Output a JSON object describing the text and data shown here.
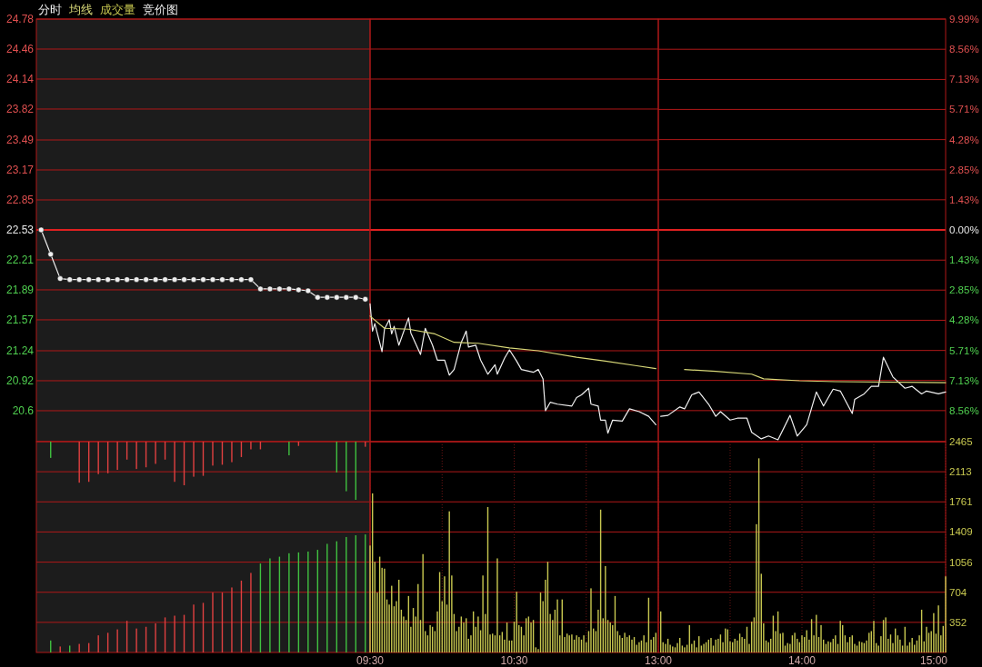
{
  "chart_data": [
    {
      "type": "line",
      "grid": "y",
      "tick_labels": "y",
      "categories": [
        null,
        null,
        null,
        null,
        null,
        null,
        null,
        null,
        null,
        null,
        null,
        null,
        null,
        null,
        null,
        null,
        null,
        null,
        null,
        null,
        null,
        null,
        null,
        null,
        null,
        null,
        null,
        null,
        null,
        null,
        null,
        null,
        null,
        null,
        null
      ],
      "ylim": [
        20.27,
        24.78
      ],
      "yticks": [
        24.78,
        24.46,
        24.14,
        23.82,
        23.49,
        23.17,
        22.85,
        22.53,
        22.21,
        21.89,
        21.57,
        21.24,
        20.92,
        20.6
      ],
      "marker": "circle",
      "ref_lines": [
        {
          "axis": "y",
          "value": 22.53,
          "color": "#e02020"
        }
      ],
      "series": [
        {
          "color": "#f0f0f0",
          "values": [
            22.53,
            22.27,
            22.01,
            22.0,
            22.0,
            22.0,
            22.0,
            22.0,
            22.0,
            22.0,
            22.0,
            22.0,
            22.0,
            22.0,
            22.0,
            22.0,
            22.0,
            22.0,
            22.0,
            22.0,
            22.0,
            22.0,
            22.0,
            21.9,
            21.9,
            21.9,
            21.9,
            21.89,
            21.88,
            21.81,
            21.81,
            21.81,
            21.81,
            21.81,
            21.79
          ]
        }
      ]
    },
    {
      "type": "line",
      "grid": "y",
      "legend": "top left",
      "tick_labels": false,
      "xlim": [
        9.5,
        11.5
      ],
      "ylim": [
        20.27,
        24.78
      ],
      "yticks": [
        24.78,
        24.46,
        24.14,
        23.82,
        23.49,
        23.17,
        22.85,
        22.53,
        22.21,
        21.89,
        21.57,
        21.24,
        20.92,
        20.6
      ],
      "ref_lines": [
        {
          "axis": "y",
          "value": 22.53,
          "color": "#e02020"
        }
      ],
      "series": [
        {
          "name": "分时",
          "color": "#f0f0f0",
          "x": [
            9.5,
            9.517,
            9.533,
            9.583,
            9.6,
            9.633,
            9.65,
            9.667,
            9.7,
            9.767,
            9.783,
            9.85,
            9.883,
            9.933,
            9.967,
            10.017,
            10.05,
            10.083,
            10.133,
            10.167,
            10.183,
            10.233,
            10.267,
            10.317,
            10.367,
            10.383,
            10.433,
            10.467,
            10.517,
            10.55,
            10.633,
            10.667,
            10.7,
            10.717,
            10.75,
            10.8,
            10.9,
            10.933,
            10.967,
            11.017,
            11.033,
            11.083,
            11.1,
            11.133,
            11.15,
            11.183,
            11.25,
            11.3,
            11.367,
            11.433,
            11.483
          ],
          "values": [
            21.74,
            21.45,
            21.53,
            21.23,
            21.47,
            21.57,
            21.42,
            21.5,
            21.3,
            21.59,
            21.43,
            21.2,
            21.48,
            21.3,
            21.14,
            21.14,
            20.98,
            21.04,
            21.33,
            21.45,
            21.28,
            21.3,
            21.14,
            20.99,
            21.09,
            20.99,
            21.16,
            21.25,
            21.13,
            21.04,
            21.01,
            21.04,
            20.94,
            20.6,
            20.69,
            20.67,
            20.65,
            20.74,
            20.77,
            20.84,
            20.67,
            20.65,
            20.5,
            20.5,
            20.36,
            20.5,
            20.49,
            20.62,
            20.59,
            20.54,
            20.45
          ]
        },
        {
          "name": "均线",
          "color": "#d8d878",
          "x": [
            9.5,
            9.6,
            9.767,
            9.95,
            10.083,
            10.25,
            10.467,
            10.667,
            10.933,
            11.133,
            11.35,
            11.483
          ],
          "values": [
            21.61,
            21.48,
            21.47,
            21.42,
            21.33,
            21.32,
            21.27,
            21.24,
            21.17,
            21.13,
            21.08,
            21.05
          ]
        }
      ]
    },
    {
      "type": "line",
      "grid": "y",
      "tick_labels": "y",
      "xlim": [
        13,
        15
      ],
      "ylim": [
        20.27,
        24.78
      ],
      "y2lim": [
        -10.03,
        9.99
      ],
      "y2ticks": [
        {
          "value": 9.99,
          "label": "9.99%"
        },
        {
          "value": 8.56,
          "label": "8.56%"
        },
        {
          "value": 7.13,
          "label": "7.13%"
        },
        {
          "value": 5.71,
          "label": "5.71%"
        },
        {
          "value": 4.28,
          "label": "4.28%"
        },
        {
          "value": 2.85,
          "label": "2.85%"
        },
        {
          "value": 1.43,
          "label": "1.43%"
        },
        {
          "value": 0,
          "label": "0.00%"
        },
        {
          "value": -1.43,
          "label": "1.43%"
        },
        {
          "value": -2.85,
          "label": "2.85%"
        },
        {
          "value": -4.28,
          "label": "4.28%"
        },
        {
          "value": -5.71,
          "label": "5.71%"
        },
        {
          "value": -7.13,
          "label": "7.13%"
        },
        {
          "value": -8.56,
          "label": "8.56%"
        }
      ],
      "ref_lines": [
        {
          "axis": "y",
          "value": 22.53,
          "color": "#e02020"
        }
      ],
      "series": [
        {
          "color": "#f0f0f0",
          "x": [
            13.017,
            13.067,
            13.15,
            13.183,
            13.233,
            13.283,
            13.35,
            13.4,
            13.433,
            13.5,
            13.55,
            13.617,
            13.65,
            13.717,
            13.767,
            13.833,
            13.917,
            13.967,
            14.033,
            14.1,
            14.15,
            14.217,
            14.267,
            14.35,
            14.367,
            14.433,
            14.483,
            14.533,
            14.567,
            14.633,
            14.717,
            14.767,
            14.833,
            14.867,
            14.95,
            15
          ],
          "values": [
            20.54,
            20.55,
            20.64,
            20.62,
            20.77,
            20.8,
            20.67,
            20.54,
            20.59,
            20.5,
            20.52,
            20.52,
            20.37,
            20.3,
            20.33,
            20.29,
            20.55,
            20.33,
            20.45,
            20.8,
            20.65,
            20.83,
            20.81,
            20.57,
            20.72,
            20.78,
            20.86,
            20.86,
            21.17,
            20.96,
            20.84,
            20.86,
            20.78,
            20.81,
            20.78,
            20.8
          ]
        },
        {
          "color": "#d8d878",
          "x": [
            13.183,
            13.4,
            13.65,
            13.733,
            13.983,
            14.233,
            15
          ],
          "values": [
            21.04,
            21.02,
            20.99,
            20.94,
            20.92,
            20.91,
            20.9
          ]
        }
      ]
    },
    {
      "type": "bar",
      "grid": "y",
      "tick_labels": false,
      "categories": [
        null,
        null,
        null,
        null,
        null,
        null,
        null,
        null,
        null,
        null,
        null,
        null,
        null,
        null,
        null,
        null,
        null,
        null,
        null,
        null,
        null,
        null,
        null,
        null,
        null,
        null,
        null,
        null,
        null,
        null,
        null,
        null,
        null,
        null,
        null
      ],
      "ylim": [
        0,
        2465
      ],
      "yticks": [
        2465,
        2113,
        1761,
        1409,
        1056,
        704,
        352
      ],
      "legend": "top left",
      "series": [
        {
          "name": "竞价图",
          "color": "#e8e8e8",
          "values": [
            null,
            140,
            70,
            80,
            100,
            110,
            200,
            230,
            270,
            370,
            280,
            300,
            340,
            410,
            430,
            440,
            560,
            580,
            700,
            700,
            760,
            840,
            930,
            1040,
            1100,
            1120,
            1160,
            1170,
            1180,
            1200,
            1270,
            1300,
            1350,
            1370,
            1380
          ],
          "colors": [
            null,
            "#40c040",
            "#e04040",
            "#40c040",
            "#e04040",
            "#e04040",
            "#e04040",
            "#e04040",
            "#e04040",
            "#e04040",
            "#e04040",
            "#e04040",
            "#e04040",
            "#e04040",
            "#e04040",
            "#e04040",
            "#e04040",
            "#e04040",
            "#e04040",
            "#e04040",
            "#e04040",
            "#e04040",
            "#e04040",
            "#40c040",
            "#40c040",
            "#40c040",
            "#40c040",
            "#40c040",
            "#40c040",
            "#40c040",
            "#40c040",
            "#40c040",
            "#40c040",
            "#40c040",
            "#40c040"
          ]
        },
        {
          "base": [
            null,
            2465,
            null,
            null,
            2465,
            2465,
            2465,
            2465,
            2465,
            2465,
            2465,
            2465,
            2465,
            2465,
            2465,
            2465,
            2465,
            2465,
            2465,
            2465,
            2465,
            2465,
            2465,
            2465,
            null,
            null,
            2465,
            2465,
            null,
            null,
            null,
            2465,
            2465,
            2465,
            2465
          ],
          "values": [
            null,
            -190,
            null,
            null,
            -480,
            -470,
            -380,
            -370,
            -330,
            -210,
            -320,
            -300,
            -260,
            -210,
            -470,
            -510,
            -410,
            -400,
            -280,
            -270,
            -240,
            -180,
            -90,
            -90,
            null,
            null,
            -160,
            -50,
            null,
            null,
            null,
            -360,
            -580,
            -680,
            -60
          ],
          "colors": [
            null,
            "#40c040",
            null,
            null,
            "#e04040",
            "#e04040",
            "#e04040",
            "#e04040",
            "#e04040",
            "#e04040",
            "#e04040",
            "#e04040",
            "#e04040",
            "#e04040",
            "#e04040",
            "#e04040",
            "#e04040",
            "#e04040",
            "#e04040",
            "#e04040",
            "#e04040",
            "#e04040",
            "#e04040",
            "#e04040",
            null,
            null,
            "#40c040",
            "#e04040",
            null,
            null,
            null,
            "#40c040",
            "#40c040",
            "#40c040",
            "#e04040"
          ]
        }
      ]
    },
    {
      "type": "bar",
      "grid": true,
      "legend": "top left",
      "tick_labels": "x",
      "xlim": [
        9.5,
        11.5
      ],
      "xticks": [
        {
          "value": 9.5,
          "label": "09:30"
        },
        {
          "value": 10,
          "label": null
        },
        {
          "value": 10.5,
          "label": "10:30"
        },
        {
          "value": 11,
          "label": null
        }
      ],
      "ylim": [
        0,
        2465
      ],
      "yticks": [
        2465,
        2113,
        1761,
        1409,
        1056,
        704,
        352
      ],
      "series": [
        {
          "name": "成交量",
          "color": "#c8c850",
          "x": [
            9.5,
            9.517,
            9.533,
            9.55,
            9.567,
            9.583,
            9.6,
            9.617,
            9.633,
            9.65,
            9.667,
            9.683,
            9.7,
            9.717,
            9.733,
            9.75,
            9.767,
            9.783,
            9.8,
            9.817,
            9.833,
            9.85,
            9.867,
            9.883,
            9.9,
            9.917,
            9.933,
            9.95,
            9.967,
            9.983,
            10,
            10.017,
            10.033,
            10.05,
            10.067,
            10.083,
            10.1,
            10.117,
            10.133,
            10.15,
            10.167,
            10.183,
            10.2,
            10.217,
            10.233,
            10.25,
            10.267,
            10.283,
            10.3,
            10.317,
            10.333,
            10.35,
            10.367,
            10.383,
            10.4,
            10.417,
            10.433,
            10.45,
            10.467,
            10.483,
            10.5,
            10.517,
            10.533,
            10.55,
            10.567,
            10.583,
            10.6,
            10.617,
            10.633,
            10.65,
            10.667,
            10.683,
            10.7,
            10.717,
            10.733,
            10.75,
            10.767,
            10.783,
            10.8,
            10.817,
            10.833,
            10.85,
            10.867,
            10.883,
            10.9,
            10.917,
            10.933,
            10.95,
            10.967,
            10.983,
            11,
            11.017,
            11.033,
            11.05,
            11.067,
            11.083,
            11.1,
            11.117,
            11.133,
            11.15,
            11.167,
            11.183,
            11.2,
            11.217,
            11.233,
            11.25,
            11.267,
            11.283,
            11.3,
            11.317,
            11.333,
            11.35,
            11.367,
            11.383,
            11.4,
            11.417,
            11.433,
            11.45,
            11.467,
            11.483
          ],
          "values": [
            1250,
            1860,
            1060,
            700,
            1120,
            990,
            980,
            620,
            560,
            780,
            540,
            600,
            850,
            500,
            420,
            380,
            660,
            300,
            520,
            420,
            800,
            380,
            1150,
            250,
            200,
            320,
            300,
            250,
            480,
            940,
            600,
            890,
            560,
            1650,
            900,
            450,
            250,
            300,
            420,
            350,
            400,
            160,
            200,
            480,
            300,
            420,
            260,
            900,
            450,
            1700,
            210,
            220,
            200,
            1100,
            200,
            240,
            150,
            350,
            140,
            140,
            360,
            710,
            320,
            300,
            200,
            400,
            420,
            350,
            380,
            60,
            40,
            700,
            600,
            850,
            1060,
            450,
            380,
            500,
            620,
            200,
            620,
            180,
            220,
            200,
            210,
            150,
            200,
            180,
            150,
            200,
            120,
            250,
            750,
            280,
            250,
            500,
            1670,
            400,
            1010,
            380,
            350,
            320,
            660,
            250,
            200,
            170,
            230,
            180,
            200,
            150,
            180,
            90,
            120,
            140,
            200,
            120,
            640,
            150,
            180,
            230
          ]
        }
      ]
    },
    {
      "type": "bar",
      "grid": true,
      "xlim": [
        13,
        15
      ],
      "xticks": [
        {
          "value": 13,
          "label": "13:00"
        },
        {
          "value": 13.5,
          "label": null
        },
        {
          "value": 14,
          "label": "14:00"
        },
        {
          "value": 14.5,
          "label": null
        },
        {
          "value": 15,
          "label": "15:00"
        }
      ],
      "ylim": [
        0,
        2465
      ],
      "yticks": [
        2465,
        2113,
        1761,
        1409,
        1056,
        704,
        352
      ],
      "series": [
        {
          "color": "#c8c850",
          "x": [
            13.017,
            13.033,
            13.05,
            13.067,
            13.083,
            13.1,
            13.117,
            13.133,
            13.15,
            13.167,
            13.183,
            13.2,
            13.217,
            13.233,
            13.25,
            13.267,
            13.283,
            13.3,
            13.317,
            13.333,
            13.35,
            13.367,
            13.383,
            13.4,
            13.417,
            13.433,
            13.45,
            13.467,
            13.483,
            13.5,
            13.517,
            13.533,
            13.55,
            13.567,
            13.583,
            13.6,
            13.617,
            13.633,
            13.65,
            13.667,
            13.683,
            13.7,
            13.717,
            13.733,
            13.75,
            13.767,
            13.783,
            13.8,
            13.817,
            13.833,
            13.85,
            13.867,
            13.883,
            13.9,
            13.917,
            13.933,
            13.95,
            13.967,
            13.983,
            14,
            14.017,
            14.033,
            14.05,
            14.067,
            14.083,
            14.1,
            14.117,
            14.133,
            14.15,
            14.167,
            14.183,
            14.2,
            14.217,
            14.233,
            14.25,
            14.267,
            14.283,
            14.3,
            14.317,
            14.333,
            14.35,
            14.367,
            14.383,
            14.4,
            14.417,
            14.433,
            14.45,
            14.467,
            14.483,
            14.5,
            14.517,
            14.533,
            14.55,
            14.567,
            14.583,
            14.6,
            14.617,
            14.633,
            14.65,
            14.667,
            14.683,
            14.7,
            14.717,
            14.733,
            14.75,
            14.767,
            14.783,
            14.8,
            14.817,
            14.833,
            14.85,
            14.867,
            14.883,
            14.9,
            14.917,
            14.933,
            14.95,
            14.967,
            14.983,
            15
          ],
          "values": [
            480,
            120,
            100,
            160,
            90,
            70,
            60,
            110,
            170,
            80,
            60,
            90,
            320,
            100,
            140,
            60,
            190,
            80,
            100,
            120,
            150,
            170,
            80,
            150,
            160,
            210,
            120,
            280,
            270,
            130,
            120,
            160,
            140,
            220,
            180,
            160,
            300,
            100,
            360,
            410,
            1500,
            2270,
            920,
            340,
            140,
            120,
            160,
            430,
            250,
            480,
            220,
            230,
            80,
            110,
            100,
            200,
            230,
            160,
            120,
            200,
            180,
            260,
            150,
            390,
            200,
            440,
            180,
            320,
            150,
            100,
            130,
            120,
            160,
            200,
            100,
            370,
            320,
            200,
            120,
            180,
            200,
            100,
            80,
            130,
            120,
            110,
            140,
            230,
            250,
            370,
            110,
            80,
            190,
            380,
            410,
            160,
            210,
            110,
            280,
            200,
            150,
            80,
            300,
            80,
            120,
            170,
            90,
            140,
            200,
            500,
            130,
            300,
            230,
            250,
            460,
            220,
            550,
            200,
            310,
            890
          ]
        }
      ]
    }
  ]
}
